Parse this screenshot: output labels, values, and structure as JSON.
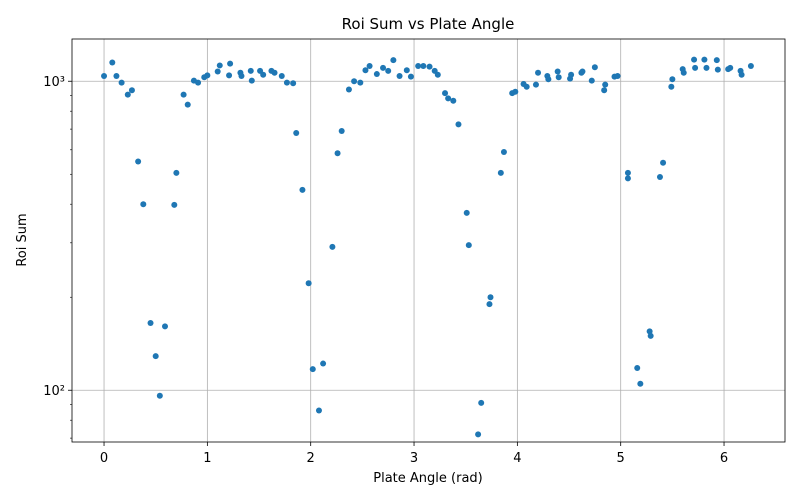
{
  "chart_data": {
    "type": "scatter",
    "title": "Roi Sum vs Plate Angle",
    "xlabel": "Plate Angle (rad)",
    "ylabel": "Roi Sum",
    "xlim": [
      -0.31,
      6.59
    ],
    "ylim": [
      68,
      1370
    ],
    "yscale": "log",
    "grid": true,
    "x_ticks": [
      0,
      1,
      2,
      3,
      4,
      5,
      6
    ],
    "y_ticks": [
      100,
      1000
    ],
    "y_tick_labels": [
      "10²",
      "10³"
    ],
    "marker_color": "#1f77b4",
    "points": [
      [
        0.0,
        1040
      ],
      [
        0.08,
        1150
      ],
      [
        0.12,
        1040
      ],
      [
        0.17,
        990
      ],
      [
        0.23,
        905
      ],
      [
        0.27,
        935
      ],
      [
        0.33,
        550
      ],
      [
        0.38,
        400
      ],
      [
        0.45,
        165
      ],
      [
        0.5,
        129
      ],
      [
        0.54,
        96
      ],
      [
        0.59,
        161
      ],
      [
        0.68,
        398
      ],
      [
        0.7,
        505
      ],
      [
        0.77,
        905
      ],
      [
        0.81,
        840
      ],
      [
        0.87,
        1005
      ],
      [
        0.91,
        990
      ],
      [
        0.97,
        1030
      ],
      [
        1.0,
        1045
      ],
      [
        1.1,
        1075
      ],
      [
        1.12,
        1125
      ],
      [
        1.21,
        1045
      ],
      [
        1.22,
        1140
      ],
      [
        1.32,
        1065
      ],
      [
        1.33,
        1040
      ],
      [
        1.42,
        1080
      ],
      [
        1.43,
        1005
      ],
      [
        1.51,
        1080
      ],
      [
        1.54,
        1050
      ],
      [
        1.62,
        1080
      ],
      [
        1.65,
        1065
      ],
      [
        1.72,
        1040
      ],
      [
        1.77,
        990
      ],
      [
        1.83,
        985
      ],
      [
        1.86,
        680
      ],
      [
        1.92,
        445
      ],
      [
        1.98,
        222
      ],
      [
        2.02,
        117
      ],
      [
        2.08,
        86
      ],
      [
        2.12,
        122
      ],
      [
        2.21,
        291
      ],
      [
        2.26,
        585
      ],
      [
        2.3,
        690
      ],
      [
        2.37,
        940
      ],
      [
        2.42,
        1000
      ],
      [
        2.48,
        990
      ],
      [
        2.53,
        1085
      ],
      [
        2.57,
        1120
      ],
      [
        2.64,
        1055
      ],
      [
        2.7,
        1105
      ],
      [
        2.75,
        1080
      ],
      [
        2.8,
        1170
      ],
      [
        2.86,
        1040
      ],
      [
        2.93,
        1085
      ],
      [
        2.97,
        1035
      ],
      [
        3.04,
        1120
      ],
      [
        3.09,
        1120
      ],
      [
        3.15,
        1115
      ],
      [
        3.2,
        1080
      ],
      [
        3.23,
        1050
      ],
      [
        3.3,
        915
      ],
      [
        3.33,
        880
      ],
      [
        3.38,
        865
      ],
      [
        3.43,
        725
      ],
      [
        3.51,
        375
      ],
      [
        3.53,
        295
      ],
      [
        3.62,
        72
      ],
      [
        3.65,
        91
      ],
      [
        3.73,
        190
      ],
      [
        3.74,
        200
      ],
      [
        3.84,
        505
      ],
      [
        3.87,
        590
      ],
      [
        3.95,
        915
      ],
      [
        3.98,
        925
      ],
      [
        4.06,
        980
      ],
      [
        4.09,
        960
      ],
      [
        4.18,
        975
      ],
      [
        4.2,
        1065
      ],
      [
        4.29,
        1040
      ],
      [
        4.3,
        1015
      ],
      [
        4.39,
        1075
      ],
      [
        4.4,
        1030
      ],
      [
        4.51,
        1020
      ],
      [
        4.52,
        1050
      ],
      [
        4.62,
        1065
      ],
      [
        4.63,
        1075
      ],
      [
        4.72,
        1005
      ],
      [
        4.75,
        1110
      ],
      [
        4.84,
        935
      ],
      [
        4.85,
        975
      ],
      [
        4.94,
        1035
      ],
      [
        4.97,
        1040
      ],
      [
        5.07,
        485
      ],
      [
        5.07,
        505
      ],
      [
        5.16,
        118
      ],
      [
        5.19,
        105
      ],
      [
        5.28,
        155
      ],
      [
        5.29,
        150
      ],
      [
        5.38,
        490
      ],
      [
        5.41,
        545
      ],
      [
        5.49,
        960
      ],
      [
        5.5,
        1015
      ],
      [
        5.6,
        1095
      ],
      [
        5.61,
        1065
      ],
      [
        5.71,
        1175
      ],
      [
        5.72,
        1105
      ],
      [
        5.81,
        1175
      ],
      [
        5.83,
        1105
      ],
      [
        5.93,
        1170
      ],
      [
        5.94,
        1090
      ],
      [
        6.04,
        1095
      ],
      [
        6.06,
        1105
      ],
      [
        6.16,
        1080
      ],
      [
        6.17,
        1050
      ],
      [
        6.26,
        1120
      ]
    ]
  }
}
